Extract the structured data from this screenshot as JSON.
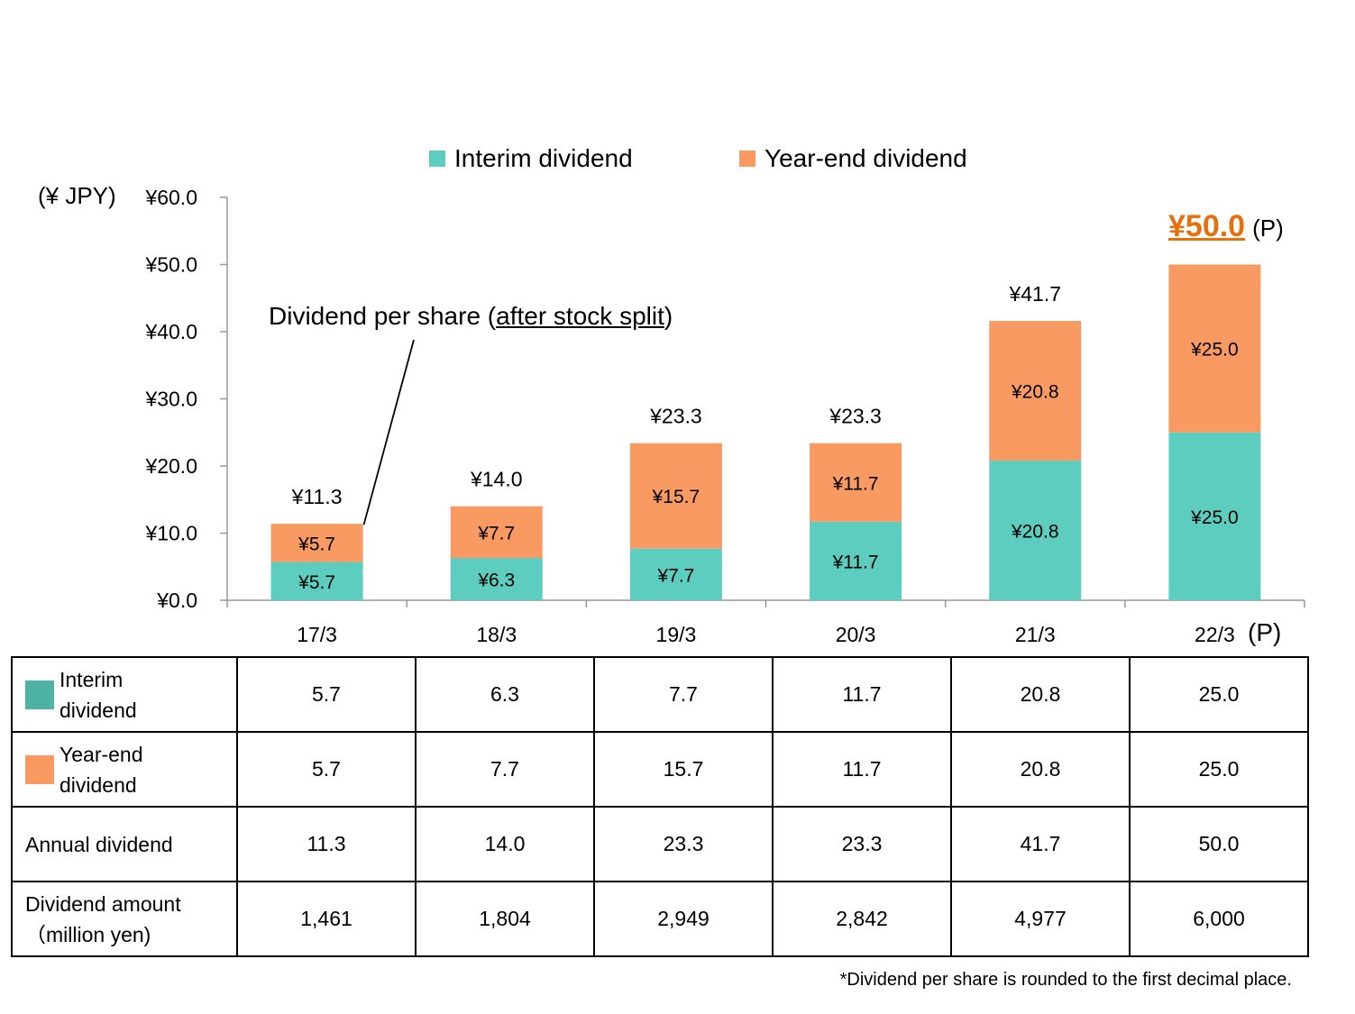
{
  "legend": {
    "interim": "Interim dividend",
    "yearend": "Year-end dividend"
  },
  "y_axis_label": "(¥ JPY)",
  "annotation": {
    "prefix": "Dividend per share (",
    "underlined": "after stock split",
    "suffix": ")"
  },
  "projection": {
    "total": "¥50.0",
    "mark": "(P)"
  },
  "colors": {
    "interim_bar": "#5ccdbe",
    "yearend_bar": "#f99a62",
    "interim_table_swatch": "#4fb3a3",
    "yearend_table_swatch": "#f99a62",
    "highlight": "#e8700a"
  },
  "chart_data": {
    "type": "bar",
    "stacked": true,
    "categories": [
      "17/3",
      "18/3",
      "19/3",
      "20/3",
      "21/3",
      "22/3"
    ],
    "series": [
      {
        "name": "Interim dividend",
        "values": [
          5.7,
          6.3,
          7.7,
          11.7,
          20.8,
          25.0
        ],
        "labels": [
          "¥5.7",
          "¥6.3",
          "¥7.7",
          "¥11.7",
          "¥20.8",
          "¥25.0"
        ]
      },
      {
        "name": "Year-end dividend",
        "values": [
          5.7,
          7.7,
          15.7,
          11.7,
          20.8,
          25.0
        ],
        "labels": [
          "¥5.7",
          "¥7.7",
          "¥15.7",
          "¥11.7",
          "¥20.8",
          "¥25.0"
        ]
      }
    ],
    "totals": [
      "¥11.3",
      "¥14.0",
      "¥23.3",
      "¥23.3",
      "¥41.7",
      ""
    ],
    "ylim": [
      0,
      60
    ],
    "y_ticks": [
      0,
      10,
      20,
      30,
      40,
      50,
      60
    ],
    "y_tick_labels": [
      "¥0.0",
      "¥10.0",
      "¥20.0",
      "¥30.0",
      "¥40.0",
      "¥50.0",
      "¥60.0"
    ],
    "ylabel": "(¥ JPY)",
    "legend_position": "top"
  },
  "table": {
    "rows": [
      {
        "label": "Interim dividend",
        "label_lines": [
          "Interim",
          "dividend"
        ],
        "swatch": "interim",
        "values": [
          "5.7",
          "6.3",
          "7.7",
          "11.7",
          "20.8",
          "25.0"
        ]
      },
      {
        "label": "Year-end dividend",
        "label_lines": [
          "Year-end",
          "dividend"
        ],
        "swatch": "yearend",
        "values": [
          "5.7",
          "7.7",
          "15.7",
          "11.7",
          "20.8",
          "25.0"
        ]
      },
      {
        "label": "Annual dividend",
        "label_lines": [
          "Annual dividend"
        ],
        "swatch": "",
        "values": [
          "11.3",
          "14.0",
          "23.3",
          "23.3",
          "41.7",
          "50.0"
        ]
      },
      {
        "label": "Dividend amount（million yen)",
        "label_lines": [
          "Dividend amount",
          "（million yen)"
        ],
        "swatch": "",
        "values": [
          "1,461",
          "1,804",
          "2,949",
          "2,842",
          "4,977",
          "6,000"
        ]
      }
    ]
  },
  "footnote": "*Dividend per share is rounded to the first decimal place."
}
